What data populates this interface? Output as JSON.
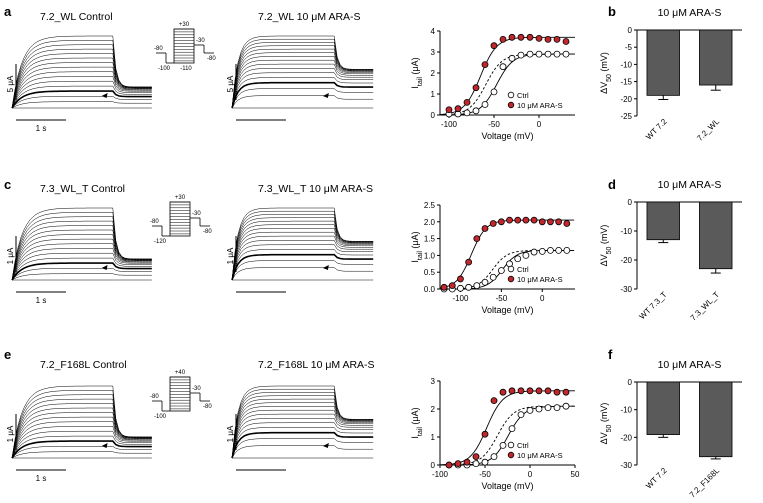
{
  "figure": {
    "rows": [
      {
        "left_label": "a",
        "right_label": "b",
        "control_title": "7.2_WL Control",
        "treated_title": "7.2_WL 10 μM ARA-S",
        "vscale_label": "5 μA",
        "hscale_label": "1 s",
        "hscale_label_treated": "",
        "protocol_labels": [
          "+30",
          "-80",
          "-30",
          "-80",
          "-100",
          "-110"
        ],
        "treated_scale_label": "5 μA"
      },
      {
        "left_label": "c",
        "right_label": "d",
        "control_title": "7.3_WL_T Control",
        "treated_title": "7.3_WL_T 10 μM ARA-S",
        "vscale_label": "1 μA",
        "hscale_label": "1 s",
        "protocol_labels": [
          "+30",
          "-80",
          "-30",
          "-80",
          "-120"
        ],
        "treated_scale_label": "1 μA"
      },
      {
        "left_label": "e",
        "right_label": "f",
        "control_title": "7.2_F168L Control",
        "treated_title": "7.2_F168L 10 μM ARA-S",
        "vscale_label": "1 μA",
        "hscale_label": "1 s",
        "protocol_labels": [
          "+40",
          "-80",
          "-30",
          "-80",
          "-100"
        ],
        "treated_scale_label": "1 μA"
      }
    ]
  },
  "chart_data": [
    {
      "panel": "a-tail",
      "type": "scatter",
      "ylabel": "I_tail (μA)",
      "ylabel_main": "I",
      "ylabel_sub": "tail",
      "ylabel_unit": " (μA)",
      "xlabel": "Voltage (mV)",
      "xlim": [
        -110,
        40
      ],
      "ylim": [
        0,
        4
      ],
      "xticks": [
        -100,
        -50,
        0
      ],
      "yticks": [
        0,
        1,
        2,
        3,
        4
      ],
      "legend": [
        "Ctrl",
        "10 μM ARA-S"
      ],
      "series": [
        {
          "name": "Ctrl",
          "x": [
            -100,
            -90,
            -80,
            -70,
            -60,
            -50,
            -40,
            -30,
            -20,
            -10,
            0,
            10,
            20,
            30
          ],
          "y": [
            0.05,
            0.05,
            0.1,
            0.2,
            0.5,
            1.1,
            2.3,
            2.7,
            2.85,
            2.9,
            2.9,
            2.9,
            2.9,
            2.9
          ]
        },
        {
          "name": "10 μM ARA-S",
          "x": [
            -100,
            -90,
            -80,
            -70,
            -60,
            -50,
            -40,
            -30,
            -20,
            -10,
            0,
            10,
            20,
            30
          ],
          "y": [
            0.25,
            0.3,
            0.6,
            1.3,
            2.4,
            3.3,
            3.6,
            3.7,
            3.7,
            3.7,
            3.65,
            3.6,
            3.6,
            3.5
          ]
        }
      ]
    },
    {
      "panel": "b",
      "type": "bar",
      "title": "10 μM ARA-S",
      "ylabel": "ΔV50 (mV)",
      "ylabel_main": "ΔV",
      "ylabel_sub": "50",
      "ylabel_unit": " (mV)",
      "categories": [
        "WT 7.2",
        "7.2_WL"
      ],
      "values": [
        -19,
        -16
      ],
      "errors": [
        1.2,
        1.5
      ],
      "ylim": [
        -25,
        0
      ],
      "yticks": [
        0,
        -5,
        -10,
        -15,
        -20,
        -25
      ]
    },
    {
      "panel": "c-tail",
      "type": "scatter",
      "ylabel": "I_tail (μA)",
      "ylabel_main": "I",
      "ylabel_sub": "tail",
      "ylabel_unit": " (μA)",
      "xlabel": "Voltage (mV)",
      "xlim": [
        -125,
        40
      ],
      "ylim": [
        0,
        2.5
      ],
      "xticks": [
        -100,
        -50,
        0
      ],
      "yticks": [
        0.0,
        0.5,
        1.0,
        1.5,
        2.0,
        2.5
      ],
      "legend": [
        "Ctrl",
        "10 μM ARA-S"
      ],
      "series": [
        {
          "name": "Ctrl",
          "x": [
            -120,
            -110,
            -100,
            -90,
            -80,
            -70,
            -60,
            -50,
            -40,
            -30,
            -20,
            -10,
            0,
            10,
            20,
            30
          ],
          "y": [
            0.0,
            0.0,
            0.02,
            0.05,
            0.1,
            0.2,
            0.35,
            0.55,
            0.75,
            0.9,
            1.0,
            1.1,
            1.12,
            1.15,
            1.15,
            1.15
          ]
        },
        {
          "name": "10 μM ARA-S",
          "x": [
            -120,
            -110,
            -100,
            -90,
            -80,
            -70,
            -60,
            -50,
            -40,
            -30,
            -20,
            -10,
            0,
            10,
            20,
            30
          ],
          "y": [
            0.05,
            0.1,
            0.3,
            0.8,
            1.5,
            1.8,
            1.95,
            2.0,
            2.05,
            2.05,
            2.05,
            2.05,
            2.0,
            2.0,
            2.0,
            1.95
          ]
        }
      ]
    },
    {
      "panel": "d",
      "type": "bar",
      "title": "10 μM ARA-S",
      "ylabel": "ΔV50 (mV)",
      "ylabel_main": "ΔV",
      "ylabel_sub": "50",
      "ylabel_unit": " (mV)",
      "categories": [
        "WT 7.3_T",
        "7.3_WL_T"
      ],
      "values": [
        -13,
        -23
      ],
      "errors": [
        1.0,
        1.5
      ],
      "ylim": [
        -30,
        0
      ],
      "yticks": [
        0,
        -10,
        -20,
        -30
      ]
    },
    {
      "panel": "e-tail",
      "type": "scatter",
      "ylabel": "I_tail (μA)",
      "ylabel_main": "I",
      "ylabel_sub": "tail",
      "ylabel_unit": " (μA)",
      "xlabel": "Voltage (mV)",
      "xlim": [
        -100,
        50
      ],
      "ylim": [
        0,
        3
      ],
      "xticks": [
        -100,
        -50,
        0,
        50
      ],
      "yticks": [
        0,
        1,
        2,
        3
      ],
      "legend": [
        "Ctrl",
        "10 μM ARA-S"
      ],
      "series": [
        {
          "name": "Ctrl",
          "x": [
            -90,
            -80,
            -70,
            -60,
            -50,
            -40,
            -30,
            -20,
            -10,
            0,
            10,
            20,
            30,
            40
          ],
          "y": [
            0.0,
            0.0,
            0.0,
            0.05,
            0.1,
            0.3,
            0.7,
            1.3,
            1.8,
            1.95,
            2.0,
            2.05,
            2.05,
            2.1
          ]
        },
        {
          "name": "10 μM ARA-S",
          "x": [
            -90,
            -80,
            -70,
            -60,
            -50,
            -40,
            -30,
            -20,
            -10,
            0,
            10,
            20,
            30,
            40
          ],
          "y": [
            0.0,
            0.05,
            0.1,
            0.3,
            1.1,
            2.3,
            2.6,
            2.65,
            2.65,
            2.65,
            2.65,
            2.65,
            2.6,
            2.6
          ]
        }
      ]
    },
    {
      "panel": "f",
      "type": "bar",
      "title": "10 μM ARA-S",
      "ylabel": "ΔV50 (mV)",
      "ylabel_main": "ΔV",
      "ylabel_sub": "50",
      "ylabel_unit": " (mV)",
      "categories": [
        "WT 7.2",
        "7.2_F168L"
      ],
      "values": [
        -19,
        -27
      ],
      "errors": [
        1.0,
        0.8
      ],
      "ylim": [
        -30,
        0
      ],
      "yticks": [
        0,
        -10,
        -20,
        -30
      ]
    }
  ]
}
